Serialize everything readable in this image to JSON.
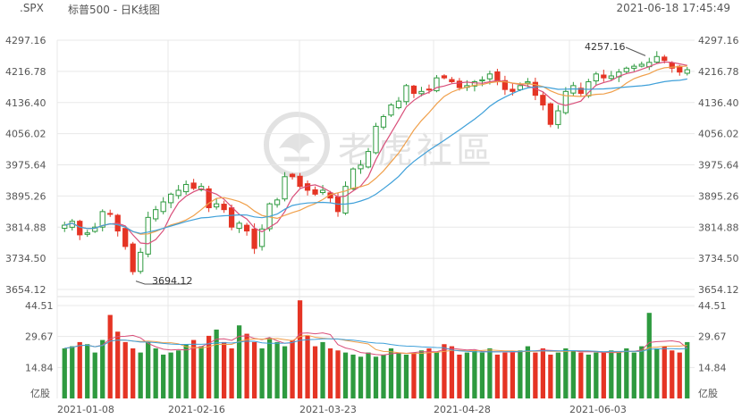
{
  "header": {
    "symbol": ".SPX",
    "title": "标普500 - 日K线图",
    "timestamp": "2021-06-18 17:45:49"
  },
  "watermark": {
    "text": "老虎社區",
    "icon": "tiger-logo-icon"
  },
  "colors": {
    "up": "#2e9a3f",
    "down": "#e53424",
    "ma5": "#d94f7a",
    "ma10": "#f0a04b",
    "ma20": "#3fa0d9",
    "vol_ma5": "#d94f7a",
    "vol_ma10": "#f0a04b",
    "vol_ma20": "#3fa0d9",
    "grid": "#e8e8e8"
  },
  "chart_data": {
    "type": "candlestick",
    "title": "标普500 - 日K线图",
    "price_axis": {
      "ticks": [
        "4297.16",
        "4216.78",
        "4136.40",
        "4056.02",
        "3975.64",
        "3895.26",
        "3814.88",
        "3734.50",
        "3654.12"
      ],
      "ylim": [
        3654.12,
        4297.16
      ]
    },
    "volume_axis": {
      "ticks": [
        "44.51",
        "29.67",
        "14.84"
      ],
      "unit_label": "亿股",
      "ylim": [
        0,
        44.51
      ]
    },
    "x_ticks": [
      "2021-01-08",
      "2021-02-16",
      "2021-03-23",
      "2021-04-28",
      "2021-06-03"
    ],
    "annotations": [
      {
        "label": "4257.16",
        "value": 4257.16,
        "kind": "high"
      },
      {
        "label": "3694.12",
        "value": 3694.12,
        "kind": "low"
      }
    ],
    "high_label": "4257.16",
    "low_label": "3694.12",
    "close_path": [
      3820,
      3830,
      3795,
      3800,
      3815,
      3855,
      3850,
      3805,
      3765,
      3700,
      3750,
      3840,
      3860,
      3880,
      3900,
      3910,
      3925,
      3915,
      3920,
      3865,
      3875,
      3860,
      3815,
      3825,
      3805,
      3760,
      3810,
      3875,
      3885,
      3945,
      3945,
      3920,
      3910,
      3900,
      3910,
      3890,
      3855,
      3920,
      3965,
      3975,
      4010,
      4075,
      4100,
      4130,
      4140,
      4180,
      4160,
      4165,
      4170,
      4200,
      4200,
      4190,
      4175,
      4180,
      4190,
      4195,
      4210,
      4190,
      4170,
      4165,
      4180,
      4190,
      4155,
      4130,
      4080,
      4115,
      4165,
      4180,
      4160,
      4190,
      4210,
      4200,
      4205,
      4215,
      4225,
      4230,
      4235,
      4240,
      4255,
      4245,
      4225,
      4215,
      4221
    ],
    "volume_path": [
      24,
      25,
      27,
      26,
      22,
      28,
      40,
      32,
      27,
      24,
      22,
      27,
      24,
      21,
      22,
      23,
      26,
      28,
      25,
      30,
      33,
      27,
      24,
      35,
      31,
      27,
      24,
      29,
      27,
      25,
      28,
      47,
      30,
      25,
      27,
      24,
      23,
      22,
      21,
      20,
      22,
      20,
      21,
      24,
      22,
      21,
      22,
      23,
      24,
      22,
      26,
      25,
      21,
      22,
      23,
      22,
      24,
      21,
      22,
      22,
      23,
      25,
      22,
      24,
      21,
      22,
      24,
      23,
      22,
      21,
      22,
      22,
      23,
      22,
      24,
      22,
      25,
      41,
      24,
      25,
      23,
      22,
      27
    ]
  }
}
